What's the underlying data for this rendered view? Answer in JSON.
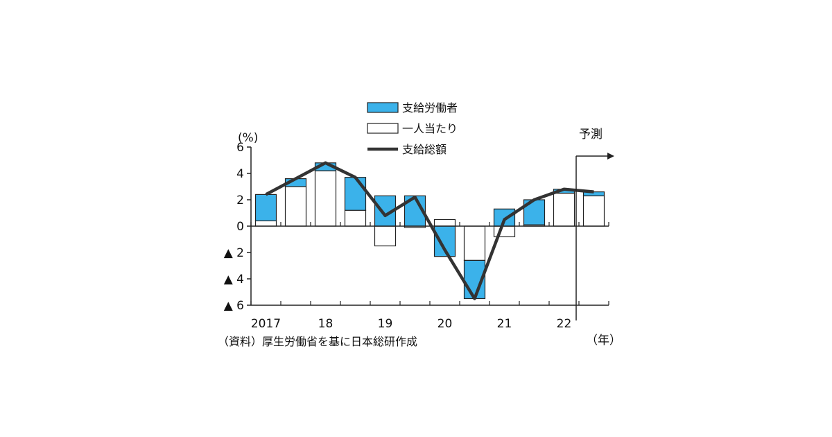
{
  "chart_data": {
    "type": "bar",
    "stacked": true,
    "y_unit": "(%)",
    "ylim": [
      -6,
      6
    ],
    "y_ticks": [
      6,
      4,
      2,
      0,
      -2,
      -4,
      -6
    ],
    "y_tick_labels": [
      "6",
      "4",
      "2",
      "0",
      "▲ 2",
      "▲ 4",
      "▲ 6"
    ],
    "x_labels": [
      "2017",
      "18",
      "19",
      "20",
      "21",
      "22"
    ],
    "x_unit": "（年）",
    "categories": [
      "2017H1",
      "2017H2",
      "2018H1",
      "2018H2",
      "2019H1",
      "2019H2",
      "2020H1",
      "2020H2",
      "2021H1",
      "2021H2",
      "2022H1",
      "2022H2"
    ],
    "series": [
      {
        "name": "支給労働者",
        "type": "bar",
        "color": "#3bb2ea",
        "values": [
          2.0,
          0.6,
          0.6,
          2.5,
          2.3,
          2.3,
          -2.3,
          -2.9,
          1.3,
          1.9,
          0.3,
          0.3
        ]
      },
      {
        "name": "一人当たり",
        "type": "bar",
        "color": "#ffffff",
        "values": [
          0.4,
          3.0,
          4.2,
          1.2,
          -1.5,
          -0.1,
          0.5,
          -2.6,
          -0.8,
          0.1,
          2.5,
          2.3
        ]
      },
      {
        "name": "支給総額",
        "type": "line",
        "color": "#333333",
        "values": [
          2.4,
          3.6,
          4.8,
          3.7,
          0.8,
          2.2,
          -1.8,
          -5.5,
          0.5,
          2.0,
          2.8,
          2.6
        ]
      }
    ],
    "forecast_label": "予測",
    "grid": false,
    "legend_position": "top-center",
    "source_note": "（資料）厚生労働省を基に日本総研作成"
  }
}
